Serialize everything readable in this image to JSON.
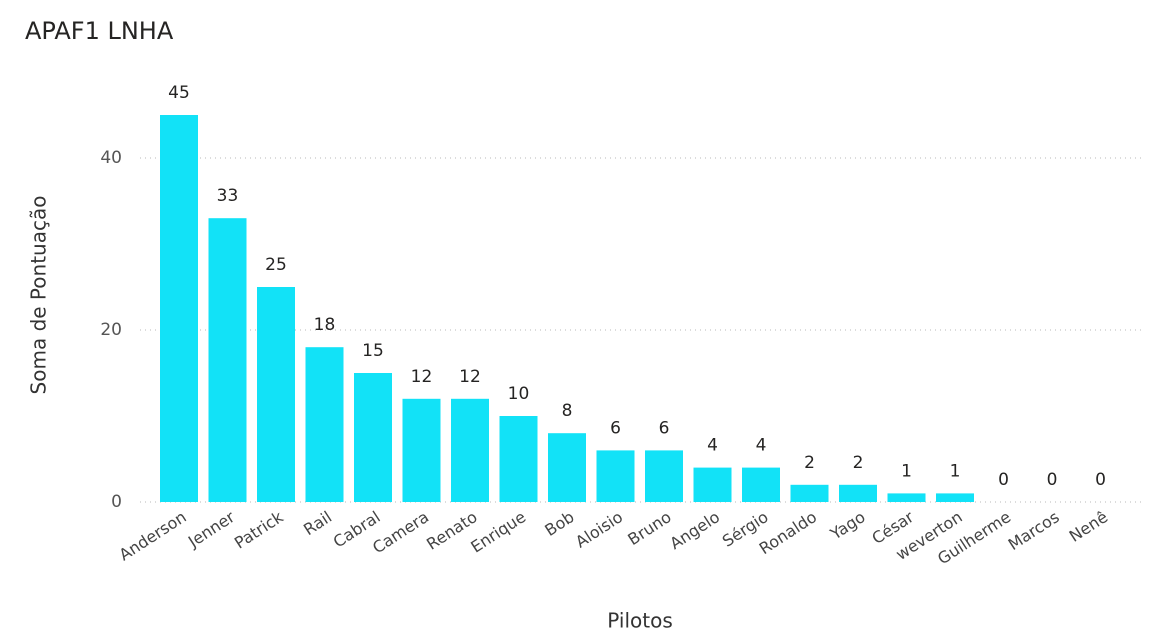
{
  "chart_data": {
    "type": "bar",
    "title": "APAF1 LNHA",
    "x_label": "Pilotos",
    "y_label": "Soma de Pontuação",
    "categories": [
      "Anderson",
      "Jenner",
      "Patrick",
      "Rail",
      "Cabral",
      "Camera",
      "Renato",
      "Enrique",
      "Bob",
      "Aloisio",
      "Bruno",
      "Angelo",
      "Sérgio",
      "Ronaldo",
      "Yago",
      "César",
      "weverton",
      "Guilherme",
      "Marcos",
      "Nenê"
    ],
    "values": [
      45,
      33,
      25,
      18,
      15,
      12,
      12,
      10,
      8,
      6,
      6,
      4,
      4,
      2,
      2,
      1,
      1,
      0,
      0,
      0
    ],
    "color": "#12E2F7",
    "ylim": [
      0,
      50
    ],
    "yticks": [
      0,
      20,
      40
    ],
    "grid": true
  }
}
